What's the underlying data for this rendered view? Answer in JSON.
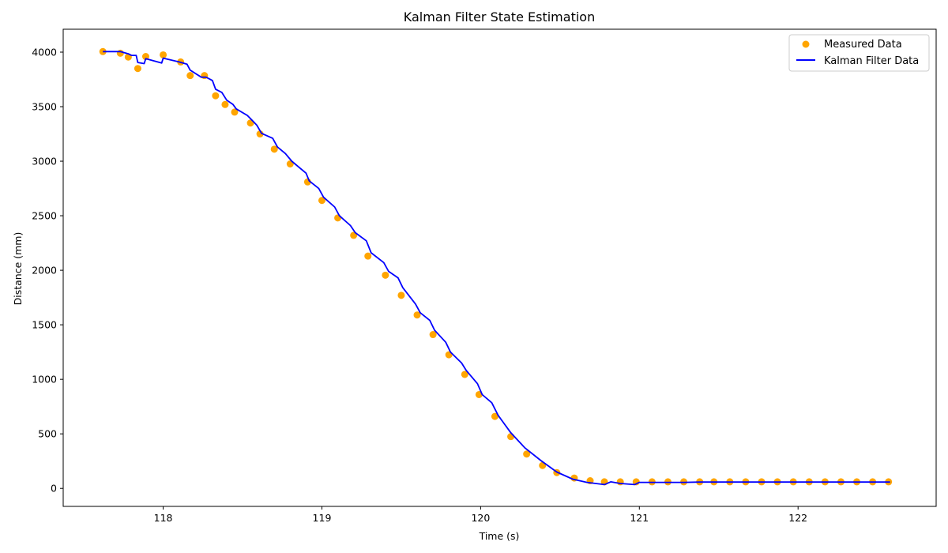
{
  "chart_data": {
    "type": "scatter",
    "title": "Kalman Filter State Estimation",
    "xlabel": "Time (s)",
    "ylabel": "Distance (mm)",
    "xlim": [
      117.37,
      122.87
    ],
    "ylim": [
      -165,
      4210
    ],
    "xticks": [
      118,
      119,
      120,
      121,
      122
    ],
    "yticks": [
      0,
      500,
      1000,
      1500,
      2000,
      2500,
      3000,
      3500,
      4000
    ],
    "grid": false,
    "legend_position": "top-right",
    "series": [
      {
        "name": "Measured Data",
        "type": "scatter",
        "color": "#ffa500",
        "x": [
          117.62,
          117.73,
          117.78,
          117.84,
          117.89,
          118.0,
          118.11,
          118.17,
          118.26,
          118.33,
          118.39,
          118.45,
          118.55,
          118.61,
          118.7,
          118.8,
          118.91,
          119.0,
          119.1,
          119.2,
          119.29,
          119.4,
          119.5,
          119.6,
          119.7,
          119.8,
          119.9,
          119.99,
          120.09,
          120.19,
          120.29,
          120.39,
          120.48,
          120.59,
          120.69,
          120.78,
          120.88,
          120.98,
          121.08,
          121.18,
          121.28,
          121.38,
          121.47,
          121.57,
          121.67,
          121.77,
          121.87,
          121.97,
          122.07,
          122.17,
          122.27,
          122.37,
          122.47,
          122.57
        ],
        "y": [
          4005,
          3990,
          3955,
          3850,
          3960,
          3975,
          3910,
          3785,
          3785,
          3600,
          3520,
          3450,
          3350,
          3250,
          3110,
          2975,
          2810,
          2640,
          2480,
          2320,
          2130,
          1955,
          1770,
          1590,
          1410,
          1225,
          1045,
          860,
          660,
          475,
          315,
          210,
          145,
          95,
          70,
          60,
          60,
          60,
          60,
          60,
          60,
          60,
          60,
          60,
          60,
          60,
          60,
          60,
          60,
          60,
          60,
          60,
          60,
          60
        ]
      },
      {
        "name": "Kalman Filter Data",
        "type": "line",
        "color": "#0000ff",
        "x": [
          117.62,
          117.73,
          117.78,
          117.8,
          117.83,
          117.84,
          117.88,
          117.89,
          117.99,
          118.0,
          118.1,
          118.15,
          118.17,
          118.24,
          118.27,
          118.31,
          118.33,
          118.37,
          118.4,
          118.44,
          118.46,
          118.53,
          118.56,
          118.59,
          118.62,
          118.69,
          118.72,
          118.77,
          118.81,
          118.9,
          118.92,
          118.98,
          119.01,
          119.08,
          119.11,
          119.18,
          119.21,
          119.28,
          119.31,
          119.39,
          119.42,
          119.48,
          119.51,
          119.59,
          119.62,
          119.68,
          119.71,
          119.78,
          119.81,
          119.88,
          119.91,
          119.98,
          120.01,
          120.07,
          120.11,
          120.19,
          120.28,
          120.38,
          120.48,
          120.58,
          120.67,
          120.78,
          120.82,
          120.88,
          120.97,
          121.0,
          121.08,
          121.18,
          121.28,
          121.38,
          121.48,
          121.58,
          121.68,
          121.78,
          121.88,
          121.98,
          122.08,
          122.18,
          122.28,
          122.38,
          122.48,
          122.58
        ],
        "y": [
          4005,
          4005,
          3985,
          3970,
          3970,
          3905,
          3895,
          3940,
          3900,
          3945,
          3910,
          3890,
          3835,
          3770,
          3770,
          3740,
          3660,
          3630,
          3560,
          3520,
          3480,
          3420,
          3375,
          3330,
          3255,
          3210,
          3130,
          3070,
          3000,
          2890,
          2820,
          2750,
          2670,
          2580,
          2500,
          2410,
          2345,
          2270,
          2160,
          2070,
          1990,
          1930,
          1840,
          1690,
          1610,
          1540,
          1450,
          1340,
          1250,
          1150,
          1080,
          960,
          860,
          785,
          670,
          510,
          370,
          255,
          150,
          85,
          55,
          35,
          60,
          45,
          35,
          55,
          55,
          55,
          55,
          58,
          58,
          58,
          58,
          58,
          58,
          58,
          58,
          58,
          58,
          58,
          58,
          58
        ]
      }
    ]
  }
}
